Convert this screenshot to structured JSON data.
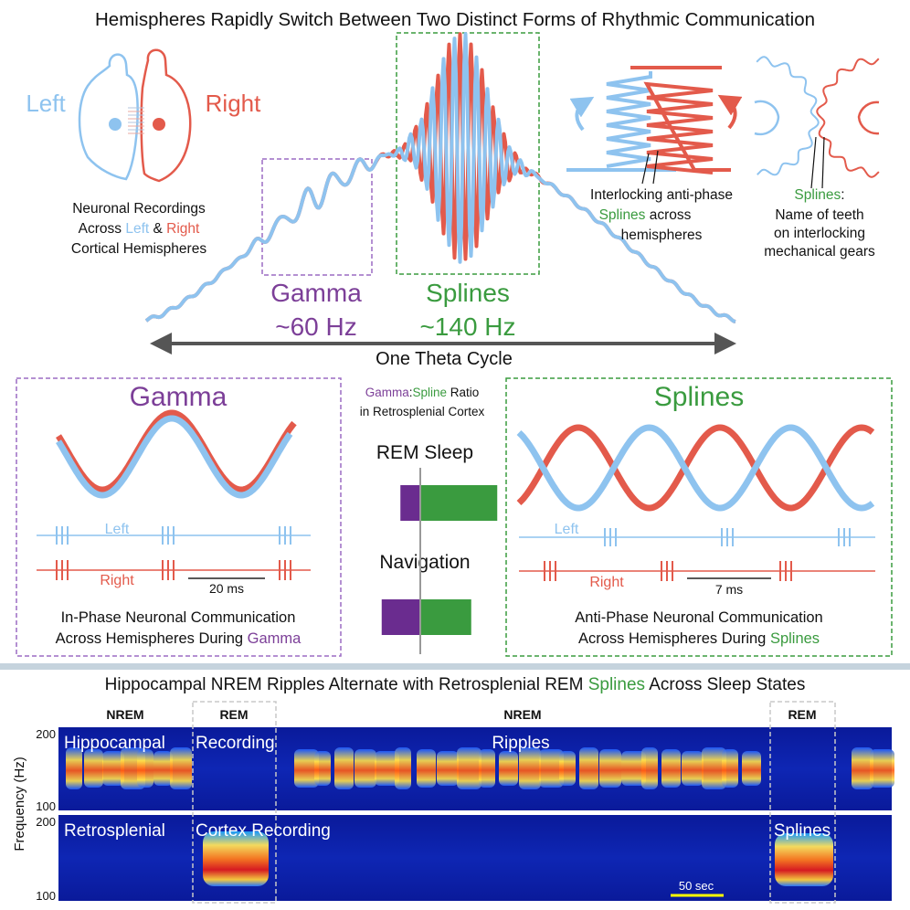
{
  "colors": {
    "left": "#8ec3ef",
    "right": "#e35a4b",
    "gamma": "#7c3f98",
    "splines": "#3a9b3f",
    "arrow": "#555555",
    "divider": "#c5d3dd",
    "gray": "#999999"
  },
  "header": {
    "title": "Hemispheres Rapidly Switch Between Two Distinct Forms of Rhythmic Communication"
  },
  "brain": {
    "left_label": "Left",
    "right_label": "Right",
    "caption_line1": "Neuronal Recordings",
    "caption_line2_pre": "Across ",
    "caption_line2_left": "Left",
    "caption_line2_mid": " & ",
    "caption_line2_right": "Right",
    "caption_line3": "Cortical Hemispheres"
  },
  "theta": {
    "gamma_label": "Gamma",
    "gamma_freq": "~60 Hz",
    "splines_label": "Splines",
    "splines_freq": "~140 Hz",
    "cycle_label": "One Theta Cycle"
  },
  "interlock": {
    "line1": "Interlocking anti-phase",
    "line2_word": "Splines",
    "line2_rest": " across",
    "line3": "hemispheres"
  },
  "gears": {
    "line1_word": "Splines",
    "line1_colon": ":",
    "line2": "Name of teeth",
    "line3": "on interlocking",
    "line4": "mechanical gears"
  },
  "gamma_panel": {
    "title": "Gamma",
    "left_label": "Left",
    "right_label": "Right",
    "scale_label": "20 ms",
    "caption_line1": "In-Phase Neuronal Communication",
    "caption_line2_pre": "Across Hemispheres During ",
    "caption_line2_word": "Gamma"
  },
  "ratio": {
    "title_gamma": "Gamma",
    "title_colon": ":",
    "title_spline": "Spline",
    "title_rest": " Ratio",
    "subtitle": "in Retrosplenial Cortex",
    "rem_label": "REM Sleep",
    "nav_label": "Navigation",
    "rem_gamma": 0.17,
    "rem_spline": 0.83,
    "nav_gamma": 0.33,
    "nav_spline": 0.67
  },
  "splines_panel": {
    "title": "Splines",
    "left_label": "Left",
    "right_label": "Right",
    "scale_label": "7 ms",
    "caption_line1": "Anti-Phase Neuronal Communication",
    "caption_line2_pre": "Across Hemispheres During ",
    "caption_line2_word": "Splines"
  },
  "bottom": {
    "title_pre": "Hippocampal NREM Ripples Alternate with Retrosplenial REM ",
    "title_word": "Splines",
    "title_post": " Across Sleep States",
    "state_labels": [
      "NREM",
      "REM",
      "NREM",
      "REM"
    ],
    "ylabel": "Frequency (Hz)",
    "tick_top_1": "200",
    "tick_bottom_1": "100",
    "tick_top_2": "200",
    "tick_bottom_2": "100",
    "hippo_label_1": "Hippocampal",
    "hippo_label_2": "Recording",
    "ripples_label": "Ripples",
    "retro_label_1": "Retrosplenial",
    "retro_label_2": "Cortex Recording",
    "splines_label": "Splines",
    "scale_label": "50 sec"
  }
}
